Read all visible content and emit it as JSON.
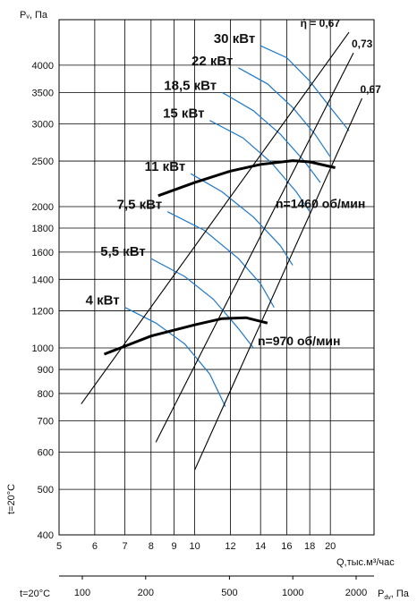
{
  "chart_data": {
    "type": "line",
    "y_axis_label": "Pᵥ, Па",
    "temp_label_vertical": "t=20°C",
    "x_axis_label": "Q,тыс.м³/час",
    "x2_label": "t=20°C",
    "x2_axis_label": "P",
    "x2_axis_sub": "dv",
    "x2_axis_unit": ", Па",
    "y_scale": "log",
    "x_scale": "log",
    "ylim": [
      400,
      5000
    ],
    "xlim": [
      5,
      25
    ],
    "grid": true,
    "y_ticks": [
      400,
      500,
      600,
      700,
      800,
      900,
      1000,
      1200,
      1400,
      1600,
      1800,
      2000,
      2500,
      3000,
      3500,
      4000
    ],
    "x_ticks": [
      5,
      6,
      7,
      8,
      9,
      10,
      12,
      14,
      16,
      18,
      20
    ],
    "x2_ticks": [
      100,
      200,
      500,
      1000,
      2000
    ],
    "series": [
      {
        "name": "n=1460 об/мин",
        "points": [
          [
            8.3,
            2110
          ],
          [
            10,
            2250
          ],
          [
            12,
            2380
          ],
          [
            14,
            2460
          ],
          [
            16.5,
            2505
          ],
          [
            18,
            2490
          ],
          [
            20.5,
            2420
          ]
        ]
      },
      {
        "name": "n=970 об/мин",
        "points": [
          [
            6.3,
            970
          ],
          [
            8,
            1060
          ],
          [
            10,
            1120
          ],
          [
            11.5,
            1155
          ],
          [
            13,
            1160
          ],
          [
            14.5,
            1130
          ]
        ]
      }
    ],
    "power_curves": [
      {
        "label": "30 кВт",
        "points": [
          [
            14,
            4400
          ],
          [
            16,
            4150
          ],
          [
            18,
            3700
          ],
          [
            20,
            3250
          ],
          [
            22,
            2900
          ]
        ]
      },
      {
        "label": "22 кВт",
        "points": [
          [
            12.5,
            3950
          ],
          [
            14.5,
            3650
          ],
          [
            16.5,
            3250
          ],
          [
            18.5,
            2850
          ],
          [
            20,
            2550
          ]
        ]
      },
      {
        "label": "18,5 кВт",
        "points": [
          [
            11.5,
            3500
          ],
          [
            13.5,
            3200
          ],
          [
            15.5,
            2850
          ],
          [
            17.5,
            2500
          ],
          [
            19,
            2250
          ]
        ]
      },
      {
        "label": "15 кВт",
        "points": [
          [
            10.8,
            3050
          ],
          [
            12.8,
            2800
          ],
          [
            14.8,
            2480
          ],
          [
            16.8,
            2150
          ],
          [
            18,
            1950
          ]
        ]
      },
      {
        "label": "11 кВт",
        "points": [
          [
            9.8,
            2350
          ],
          [
            11.5,
            2150
          ],
          [
            13.5,
            1900
          ],
          [
            15.5,
            1650
          ],
          [
            16.5,
            1500
          ]
        ]
      },
      {
        "label": "7,5 кВт",
        "points": [
          [
            8.7,
            1950
          ],
          [
            10.5,
            1780
          ],
          [
            12.5,
            1550
          ],
          [
            14,
            1370
          ],
          [
            15,
            1220
          ]
        ]
      },
      {
        "label": "5,5 кВт",
        "points": [
          [
            8,
            1550
          ],
          [
            9.5,
            1420
          ],
          [
            11,
            1270
          ],
          [
            12.5,
            1100
          ],
          [
            13.5,
            1000
          ]
        ]
      },
      {
        "label": "4 кВт",
        "points": [
          [
            7,
            1220
          ],
          [
            8.2,
            1130
          ],
          [
            9.5,
            1020
          ],
          [
            10.8,
            880
          ],
          [
            11.7,
            750
          ]
        ]
      }
    ],
    "efficiency_lines": [
      {
        "label": "ή = 0,67",
        "points": [
          [
            5.6,
            760
          ],
          [
            22,
            4700
          ]
        ]
      },
      {
        "label": "0,73",
        "points": [
          [
            8.2,
            630
          ],
          [
            22.5,
            4250
          ]
        ]
      },
      {
        "label": "0,67",
        "points": [
          [
            10,
            550
          ],
          [
            23.5,
            3400
          ]
        ]
      }
    ]
  }
}
